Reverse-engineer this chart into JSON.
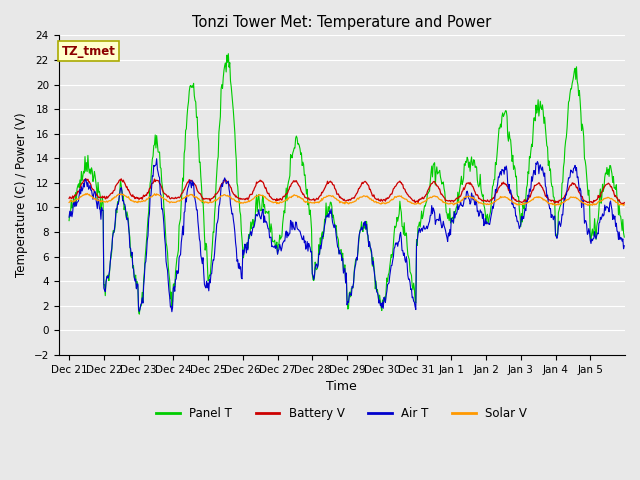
{
  "title": "Tonzi Tower Met: Temperature and Power",
  "xlabel": "Time",
  "ylabel": "Temperature (C) / Power (V)",
  "ylim": [
    -2,
    24
  ],
  "yticks": [
    -2,
    0,
    2,
    4,
    6,
    8,
    10,
    12,
    14,
    16,
    18,
    20,
    22,
    24
  ],
  "annotation_text": "TZ_tmet",
  "annotation_color": "#8B0000",
  "annotation_bg": "#FFFFCC",
  "plot_bg": "#E8E8E8",
  "grid_color": "#FFFFFF",
  "fig_bg": "#E8E8E8",
  "colors": {
    "panel_t": "#00CC00",
    "battery_v": "#CC0000",
    "air_t": "#0000CC",
    "solar_v": "#FF9900"
  },
  "legend_labels": [
    "Panel T",
    "Battery V",
    "Air T",
    "Solar V"
  ],
  "x_tick_labels": [
    "Dec 21",
    "Dec 22",
    "Dec 23",
    "Dec 24",
    "Dec 25",
    "Dec 26",
    "Dec 27",
    "Dec 28",
    "Dec 29",
    "Dec 30",
    "Dec 31",
    "Jan 1",
    "Jan 2",
    "Jan 3",
    "Jan 4",
    "Jan 5"
  ]
}
